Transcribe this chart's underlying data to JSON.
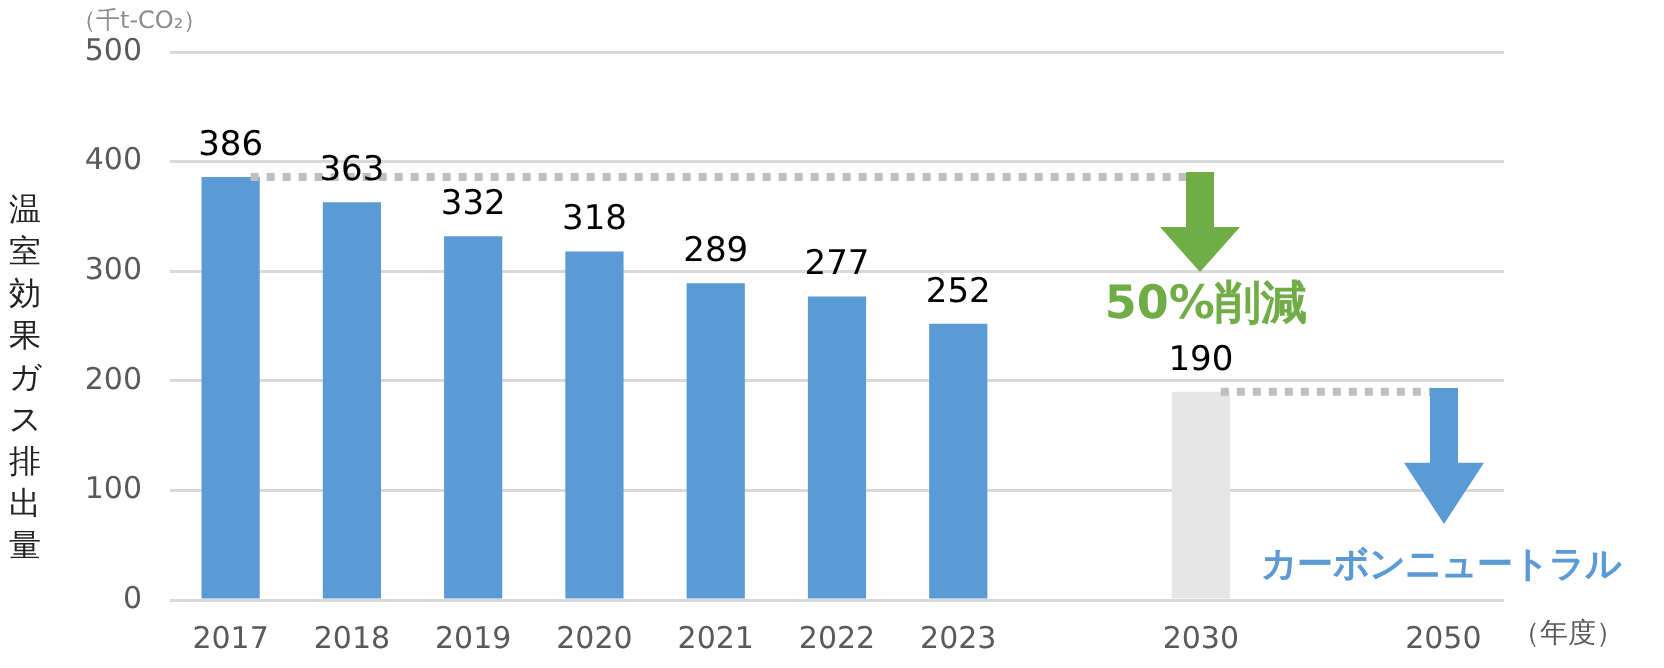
{
  "chart_data": {
    "type": "bar",
    "ylabel": "温室効果ガス排出量",
    "xlabel": "（年度）",
    "categories": [
      "2017",
      "2018",
      "2019",
      "2020",
      "2021",
      "2022",
      "2023",
      null,
      "2030",
      null,
      "2050"
    ],
    "values": [
      386,
      363,
      332,
      318,
      289,
      277,
      252,
      null,
      190,
      null,
      null
    ],
    "colors": [
      "#5b9bd5",
      "#5b9bd5",
      "#5b9bd5",
      "#5b9bd5",
      "#5b9bd5",
      "#5b9bd5",
      "#5b9bd5",
      "#5b9bd5",
      "#e7e6e6",
      "#5b9bd5",
      "#5b9bd5"
    ],
    "ylim": [
      0,
      500
    ],
    "yticks": [
      0,
      100,
      200,
      300,
      400,
      500
    ],
    "grid": "y",
    "legend": false,
    "data_labels": true,
    "ref_lines": [
      {
        "axis": "y",
        "value": 386,
        "color": "#bfbfbf",
        "line_style": "dotted"
      },
      {
        "axis": "y",
        "value": 190,
        "color": "#bfbfbf",
        "line_style": "dotted"
      }
    ],
    "annotations": [
      "（千t-CO₂）",
      "50%削減",
      "カーボンニュートラル"
    ]
  }
}
